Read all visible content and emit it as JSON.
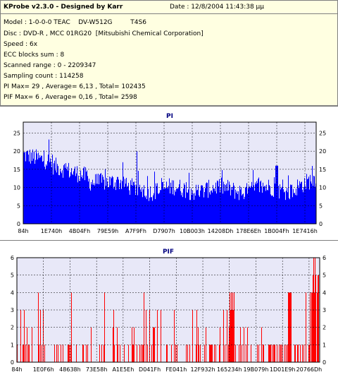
{
  "header": {
    "title": "KProbe v2.3.0 - Designed by Karr",
    "date": "Date : 12/8/2004 11:43:38 μμ",
    "model": "Model : 1-0-0-0 TEAC    DV-W512G         T4S6",
    "disc": "Disc : DVD-R , MCC 01RG20  [Mitsubishi Chemical Corporation]",
    "speed": "Speed : 6x",
    "ecc": "ECC blocks sum : 8",
    "range": "Scanned range : 0 - 2209347",
    "sampling": "Sampling count : 114258",
    "pi_summary": "PI Max= 29 , Average= 6,13 , Total= 102435",
    "pif_summary": "PIF Max= 6 , Average= 0,16 , Total= 2598"
  },
  "colors": {
    "plot_bg": "#e8e8f8",
    "pi_bar": "#0000ff",
    "pif_bar": "#ff0000",
    "title_color": "#000080",
    "grid": "#000000"
  },
  "chart_data": [
    {
      "type": "bar",
      "title": "PI",
      "ylim": [
        0,
        28
      ],
      "yticks": [
        0,
        5,
        10,
        15,
        20,
        25
      ],
      "grid": true,
      "x_tick_labels": [
        "84h",
        "1E740h",
        "4B04Fh",
        "79E59h",
        "A7F9Fh",
        "D7907h",
        "10B003h",
        "14208Dh",
        "178E6Eh",
        "1B004Fh",
        "1E7416h"
      ],
      "series": [
        {
          "values_by_segment": [
            {
              "segment": "84h-1E740h",
              "approx_max": 28,
              "approx_typical": 19
            },
            {
              "segment": "1E740h-4B04Fh",
              "approx_max": 22,
              "approx_typical": 14
            },
            {
              "segment": "4B04Fh-79E59h",
              "approx_max": 17,
              "approx_typical": 11
            },
            {
              "segment": "79E59h-1E7416h",
              "approx_max": 15,
              "approx_typical": 9
            },
            {
              "segment": "1E7416h-end",
              "approx_max": 17,
              "approx_typical": 12
            }
          ]
        }
      ]
    },
    {
      "type": "bar",
      "title": "PIF",
      "ylim": [
        0,
        6
      ],
      "yticks": [
        0,
        1,
        2,
        3,
        4,
        5,
        6
      ],
      "grid": true,
      "x_tick_labels": [
        "84h",
        "1E0F6h",
        "48638h",
        "73E58h",
        "A1E5Eh",
        "D041Fh",
        "FE041h",
        "12F932h",
        "165234h",
        "19B079h",
        "1D01E9h",
        "20766Dh"
      ],
      "series": [
        {
          "peaks": [
            {
              "x_fraction": 0.07,
              "value": 4
            },
            {
              "x_fraction": 0.18,
              "value": 4
            },
            {
              "x_fraction": 0.29,
              "value": 4
            },
            {
              "x_fraction": 0.42,
              "value": 4
            },
            {
              "x_fraction": 0.52,
              "value": 3
            },
            {
              "x_fraction": 0.71,
              "value": 4
            },
            {
              "x_fraction": 0.9,
              "value": 4
            },
            {
              "x_fraction": 0.98,
              "value": 6
            }
          ],
          "typical_value": 1
        }
      ]
    }
  ]
}
